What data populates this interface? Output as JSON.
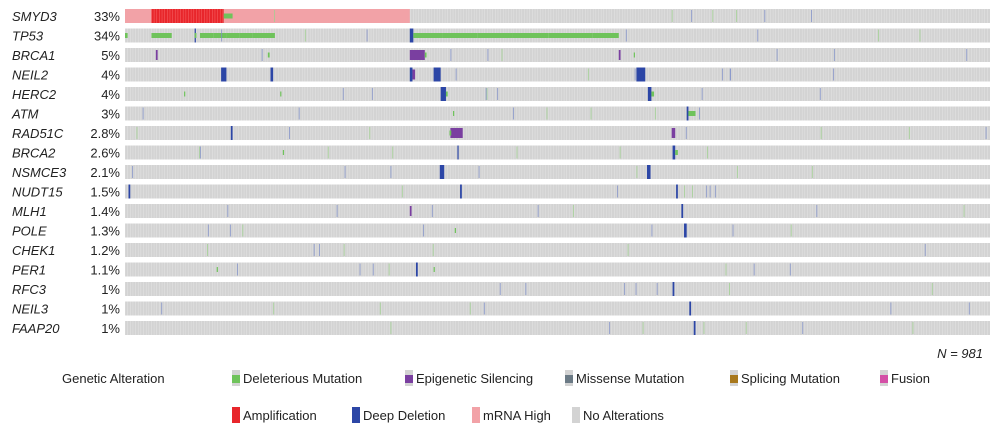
{
  "chart_data": {
    "type": "oncoprint",
    "sample_count_label": "N = 981",
    "n_samples": 981,
    "colors": {
      "background": "#d3d3d3",
      "amplification": "#e8262b",
      "mrna_high": "#f2a2a7",
      "deep_deletion": "#2c46a6",
      "deleterious_mutation": "#6fc35b",
      "epigenetic_silencing": "#7a3fa0",
      "missense_mutation": "#6b7a85",
      "splicing_mutation": "#a8781c",
      "fusion": "#d44fa6"
    },
    "rows": [
      {
        "gene": "SMYD3",
        "pct": "33%",
        "amp": [
          [
            30,
            112
          ],
          [
            1001,
            1003
          ]
        ],
        "mrna": [
          [
            0,
            30
          ],
          [
            112,
            323
          ]
        ],
        "del": [],
        "mut": [
          [
            112,
            122
          ]
        ],
        "epi": []
      },
      {
        "gene": "TP53",
        "pct": "34%",
        "amp": [],
        "mrna": [],
        "del": [
          [
            79,
            80
          ],
          [
            323,
            327
          ]
        ],
        "mut": [
          [
            0,
            3
          ],
          [
            30,
            53
          ],
          [
            79,
            81
          ],
          [
            85,
            100
          ],
          [
            100,
            115
          ],
          [
            115,
            130
          ],
          [
            130,
            145
          ],
          [
            145,
            170
          ],
          [
            327,
            360
          ],
          [
            360,
            400
          ],
          [
            400,
            440
          ],
          [
            440,
            480
          ],
          [
            480,
            530
          ],
          [
            530,
            560
          ],
          [
            990,
            998
          ]
        ],
        "epi": []
      },
      {
        "gene": "BRCA1",
        "pct": "5%",
        "amp": [],
        "mrna": [],
        "del": [],
        "mut": [
          [
            162,
            164
          ],
          [
            340,
            342
          ],
          [
            577,
            578
          ]
        ],
        "epi": [
          [
            35,
            37
          ],
          [
            323,
            340
          ],
          [
            560,
            562
          ]
        ]
      },
      {
        "gene": "NEIL2",
        "pct": "4%",
        "amp": [],
        "mrna": [],
        "del": [
          [
            109,
            115
          ],
          [
            165,
            168
          ],
          [
            323,
            326
          ],
          [
            350,
            358
          ],
          [
            580,
            590
          ]
        ],
        "mut": [],
        "epi": [
          [
            326,
            329
          ]
        ]
      },
      {
        "gene": "HERC2",
        "pct": "4%",
        "amp": [],
        "mrna": [],
        "del": [
          [
            358,
            364
          ],
          [
            593,
            597
          ]
        ],
        "mut": [
          [
            67,
            68
          ],
          [
            176,
            177
          ],
          [
            364,
            366
          ],
          [
            597,
            600
          ]
        ],
        "epi": []
      },
      {
        "gene": "ATM",
        "pct": "3%",
        "amp": [],
        "mrna": [],
        "del": [
          [
            637,
            639
          ]
        ],
        "mut": [
          [
            372,
            373
          ],
          [
            639,
            647
          ]
        ],
        "epi": []
      },
      {
        "gene": "RAD51C",
        "pct": "2.8%",
        "amp": [],
        "mrna": [],
        "del": [
          [
            120,
            122
          ]
        ],
        "mut": [
          [
            368,
            370
          ]
        ],
        "epi": [
          [
            369,
            383
          ],
          [
            620,
            624
          ]
        ]
      },
      {
        "gene": "BRCA2",
        "pct": "2.6%",
        "amp": [],
        "mrna": [],
        "del": [
          [
            377,
            378
          ],
          [
            621,
            624
          ]
        ],
        "mut": [
          [
            179,
            180
          ],
          [
            624,
            627
          ]
        ],
        "epi": []
      },
      {
        "gene": "NSMCE3",
        "pct": "2.1%",
        "amp": [],
        "mrna": [],
        "del": [
          [
            357,
            362
          ],
          [
            592,
            596
          ]
        ],
        "mut": [],
        "epi": []
      },
      {
        "gene": "NUDT15",
        "pct": "1.5%",
        "amp": [],
        "mrna": [],
        "del": [
          [
            4,
            6
          ],
          [
            380,
            382
          ],
          [
            625,
            627
          ]
        ],
        "mut": [],
        "epi": []
      },
      {
        "gene": "MLH1",
        "pct": "1.4%",
        "amp": [],
        "mrna": [],
        "del": [
          [
            631,
            633
          ]
        ],
        "mut": [],
        "epi": [
          [
            323,
            325
          ]
        ]
      },
      {
        "gene": "POLE",
        "pct": "1.3%",
        "amp": [],
        "mrna": [],
        "del": [
          [
            634,
            637
          ]
        ],
        "mut": [
          [
            374,
            375
          ]
        ],
        "epi": []
      },
      {
        "gene": "CHEK1",
        "pct": "1.2%",
        "amp": [],
        "mrna": [],
        "del": [],
        "mut": [],
        "epi": []
      },
      {
        "gene": "PER1",
        "pct": "1.1%",
        "amp": [],
        "mrna": [],
        "del": [
          [
            330,
            332
          ]
        ],
        "mut": [
          [
            104,
            105
          ],
          [
            350,
            351
          ]
        ],
        "epi": []
      },
      {
        "gene": "RFC3",
        "pct": "1%",
        "amp": [],
        "mrna": [],
        "del": [
          [
            621,
            623
          ]
        ],
        "mut": [],
        "epi": []
      },
      {
        "gene": "NEIL3",
        "pct": "1%",
        "amp": [],
        "mrna": [],
        "del": [
          [
            640,
            642
          ]
        ],
        "mut": [],
        "epi": []
      },
      {
        "gene": "FAAP20",
        "pct": "1%",
        "amp": [],
        "mrna": [],
        "del": [
          [
            645,
            647
          ]
        ],
        "mut": [],
        "epi": []
      }
    ],
    "legend": {
      "title": "Genetic Alteration",
      "row1": [
        {
          "key": "deleterious_mutation",
          "label": "Deleterious Mutation"
        },
        {
          "key": "epigenetic_silencing",
          "label": "Epigenetic Silencing"
        },
        {
          "key": "missense_mutation",
          "label": "Missense Mutation"
        },
        {
          "key": "splicing_mutation",
          "label": "Splicing Mutation"
        },
        {
          "key": "fusion",
          "label": "Fusion"
        }
      ],
      "row2": [
        {
          "key": "amplification",
          "label": "Amplification"
        },
        {
          "key": "deep_deletion",
          "label": "Deep Deletion"
        },
        {
          "key": "mrna_high",
          "label": "mRNA High"
        },
        {
          "key": "background",
          "label": "No Alterations"
        }
      ]
    }
  }
}
